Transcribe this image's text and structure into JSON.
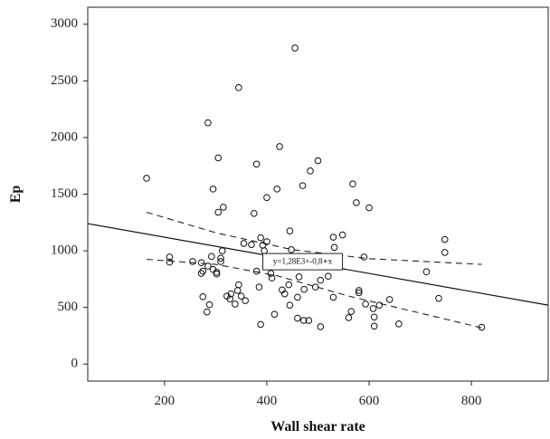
{
  "chart_data": {
    "type": "scatter",
    "xlabel": "Wall shear rate",
    "ylabel": "Ep",
    "xlim": [
      50,
      950
    ],
    "ylim": [
      -150,
      3150
    ],
    "xticks": [
      200,
      400,
      600,
      800
    ],
    "yticks": [
      0,
      500,
      1000,
      1500,
      2000,
      2500,
      3000
    ],
    "grid": false,
    "fit_equation": "y=1,28E3+-0,8∗x",
    "fit_line": {
      "intercept": 1280,
      "slope": -0.8
    },
    "confidence_upper": [
      [
        165,
        1340
      ],
      [
        300,
        1160
      ],
      [
        450,
        1010
      ],
      [
        600,
        930
      ],
      [
        820,
        880
      ]
    ],
    "confidence_lower": [
      [
        165,
        925
      ],
      [
        300,
        880
      ],
      [
        420,
        780
      ],
      [
        560,
        600
      ],
      [
        700,
        450
      ],
      [
        820,
        320
      ]
    ],
    "points": [
      [
        455,
        2790
      ],
      [
        345,
        2440
      ],
      [
        285,
        2130
      ],
      [
        425,
        1920
      ],
      [
        305,
        1820
      ],
      [
        500,
        1795
      ],
      [
        380,
        1765
      ],
      [
        485,
        1705
      ],
      [
        165,
        1640
      ],
      [
        568,
        1590
      ],
      [
        470,
        1575
      ],
      [
        295,
        1545
      ],
      [
        420,
        1545
      ],
      [
        400,
        1470
      ],
      [
        575,
        1425
      ],
      [
        315,
        1385
      ],
      [
        600,
        1380
      ],
      [
        305,
        1340
      ],
      [
        375,
        1330
      ],
      [
        548,
        1140
      ],
      [
        445,
        1175
      ],
      [
        530,
        1120
      ],
      [
        388,
        1115
      ],
      [
        748,
        1100
      ],
      [
        400,
        1080
      ],
      [
        355,
        1065
      ],
      [
        370,
        1055
      ],
      [
        392,
        1050
      ],
      [
        532,
        1030
      ],
      [
        448,
        1010
      ],
      [
        395,
        1000
      ],
      [
        313,
        1000
      ],
      [
        748,
        985
      ],
      [
        210,
        945
      ],
      [
        292,
        950
      ],
      [
        310,
        935
      ],
      [
        480,
        940
      ],
      [
        590,
        945
      ],
      [
        210,
        900
      ],
      [
        255,
        905
      ],
      [
        272,
        895
      ],
      [
        310,
        905
      ],
      [
        285,
        865
      ],
      [
        275,
        820
      ],
      [
        295,
        835
      ],
      [
        302,
        810
      ],
      [
        302,
        795
      ],
      [
        272,
        800
      ],
      [
        380,
        820
      ],
      [
        408,
        800
      ],
      [
        712,
        815
      ],
      [
        520,
        775
      ],
      [
        463,
        770
      ],
      [
        410,
        760
      ],
      [
        505,
        740
      ],
      [
        345,
        700
      ],
      [
        443,
        700
      ],
      [
        495,
        680
      ],
      [
        385,
        680
      ],
      [
        343,
        650
      ],
      [
        473,
        660
      ],
      [
        430,
        655
      ],
      [
        580,
        650
      ],
      [
        580,
        630
      ],
      [
        435,
        620
      ],
      [
        330,
        620
      ],
      [
        322,
        600
      ],
      [
        350,
        600
      ],
      [
        460,
        590
      ],
      [
        275,
        595
      ],
      [
        530,
        590
      ],
      [
        328,
        575
      ],
      [
        358,
        560
      ],
      [
        640,
        570
      ],
      [
        736,
        580
      ],
      [
        288,
        525
      ],
      [
        338,
        530
      ],
      [
        593,
        530
      ],
      [
        445,
        520
      ],
      [
        620,
        520
      ],
      [
        608,
        490
      ],
      [
        283,
        460
      ],
      [
        415,
        440
      ],
      [
        565,
        465
      ],
      [
        560,
        410
      ],
      [
        610,
        415
      ],
      [
        460,
        405
      ],
      [
        482,
        385
      ],
      [
        472,
        385
      ],
      [
        388,
        350
      ],
      [
        505,
        330
      ],
      [
        658,
        355
      ],
      [
        610,
        335
      ],
      [
        820,
        325
      ]
    ]
  }
}
